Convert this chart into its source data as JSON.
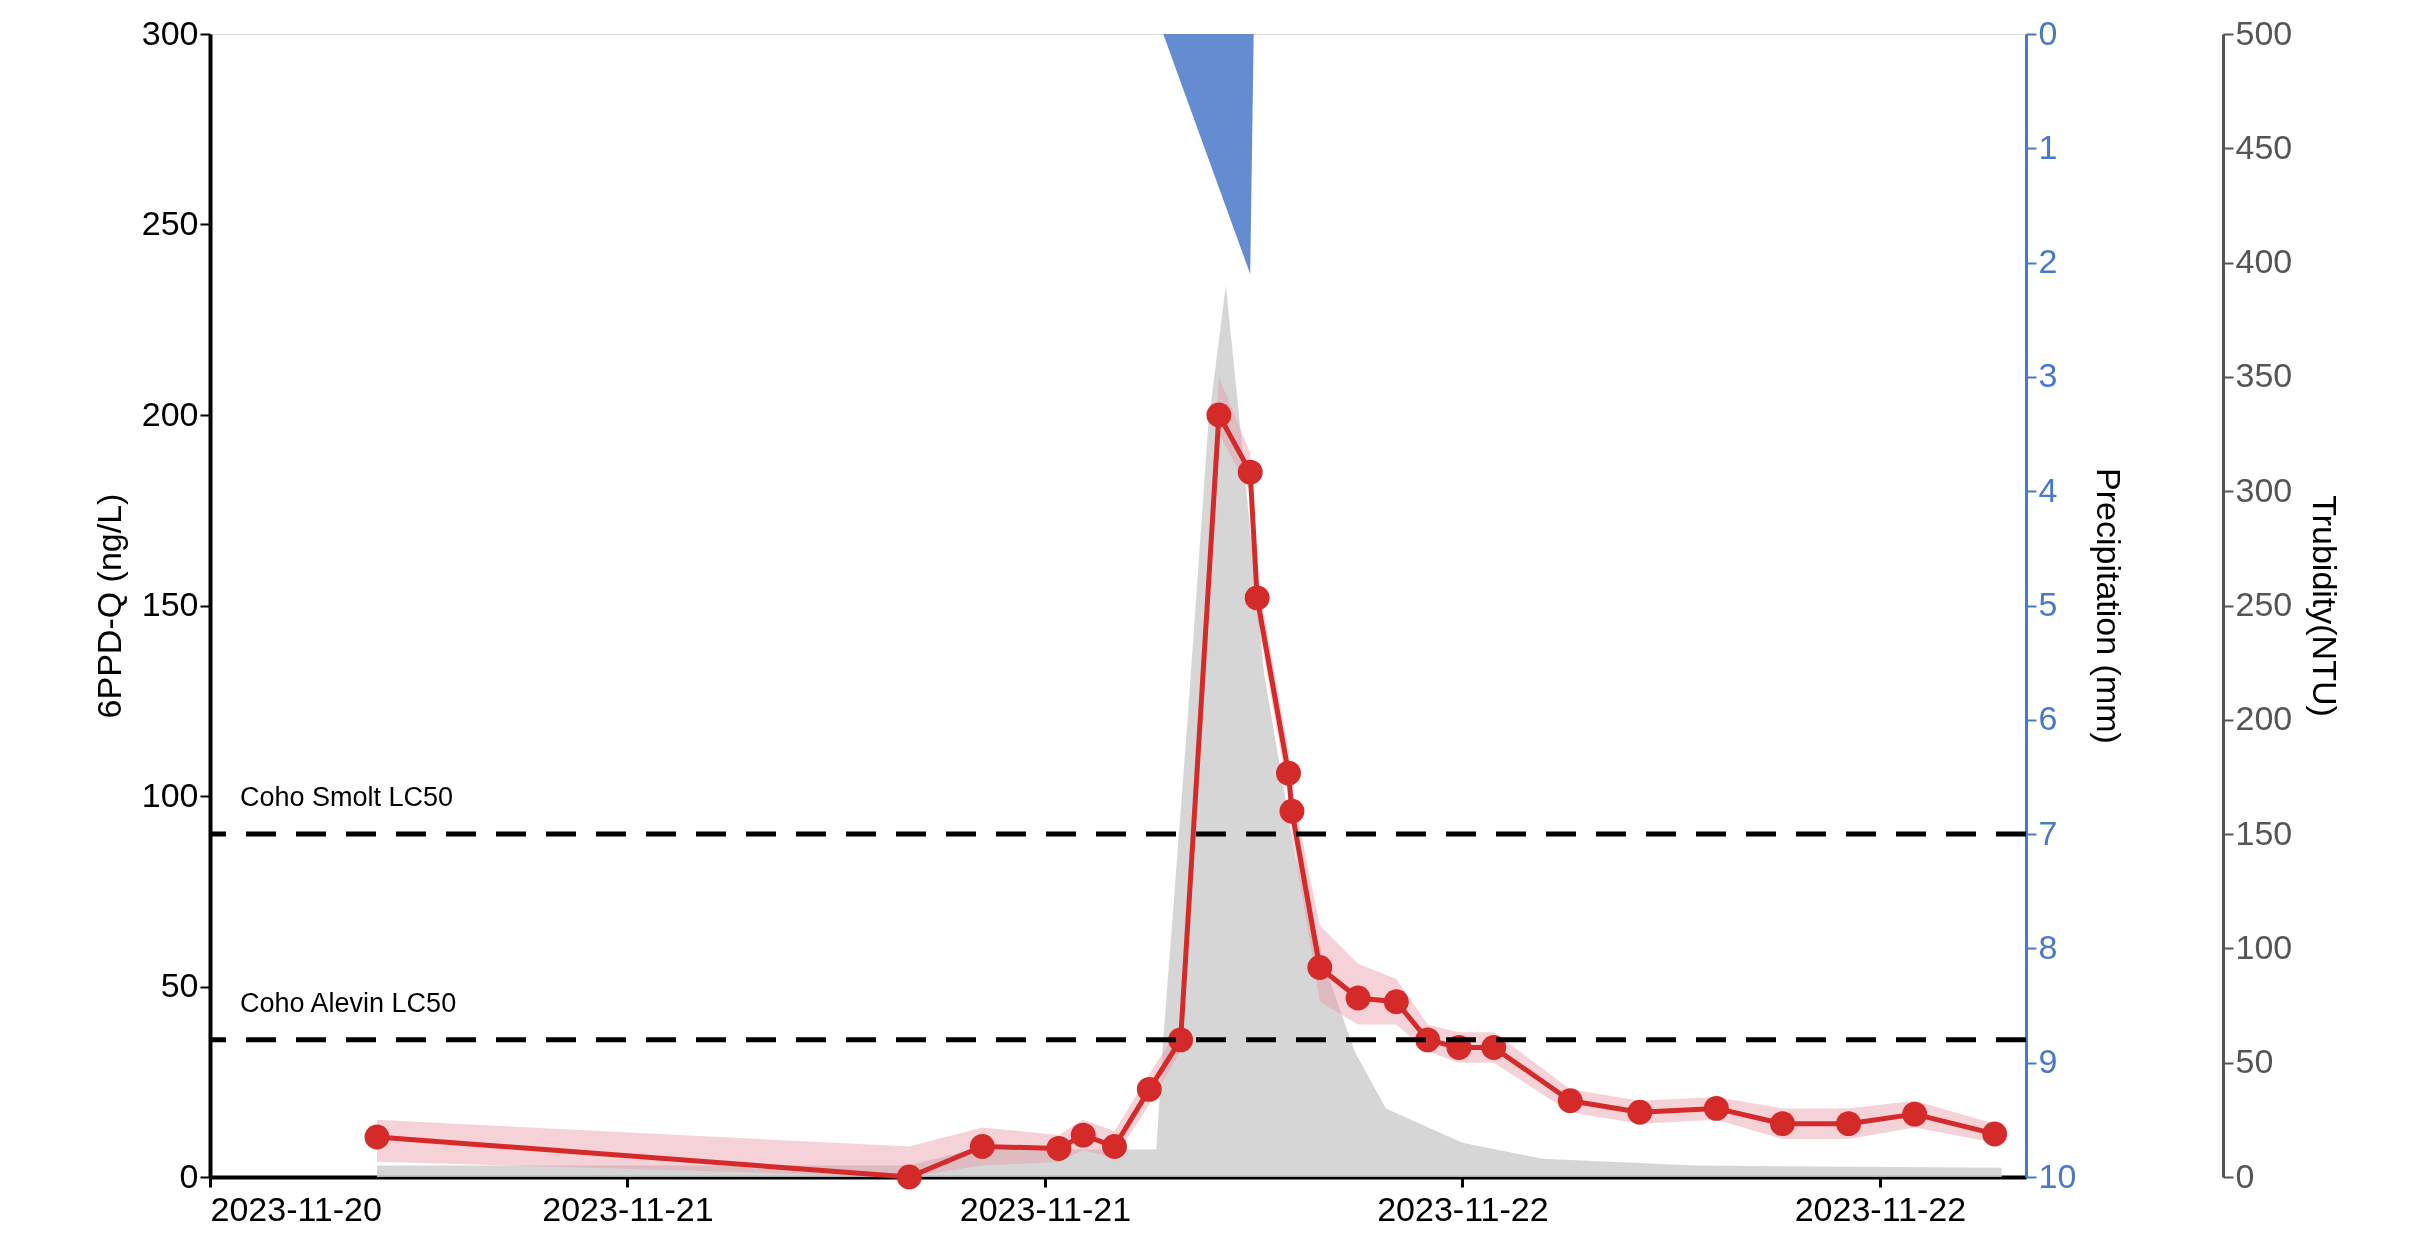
{
  "chart_data": {
    "type": "line",
    "ylabel": "6PPD-Q (ng/L)",
    "y2label": "Precipitation (mm)",
    "y3label": "Trubidity(NTU)",
    "xlim": [
      "2023-11-20T12:00",
      "2023-11-22T16:12"
    ],
    "xticks": [
      {
        "value": "2023-11-20T12:00",
        "label": "2023-11-20"
      },
      {
        "value": "2023-11-21T00:00",
        "label": "2023-11-21"
      },
      {
        "value": "2023-11-21T12:00",
        "label": "2023-11-21"
      },
      {
        "value": "2023-11-22T00:00",
        "label": "2023-11-22"
      },
      {
        "value": "2023-11-22T12:00",
        "label": "2023-11-22"
      }
    ],
    "ylim": [
      0,
      300
    ],
    "yticks": [
      0,
      50,
      100,
      150,
      200,
      250,
      300
    ],
    "y2lim": [
      10,
      0
    ],
    "y2ticks": [
      0,
      1,
      2,
      3,
      4,
      5,
      6,
      7,
      8,
      9,
      10
    ],
    "y3lim": [
      0,
      500
    ],
    "y3ticks": [
      0,
      50,
      100,
      150,
      200,
      250,
      300,
      350,
      400,
      450,
      500
    ],
    "grid": false,
    "line_style": "solid",
    "series": [
      {
        "type": "area",
        "axis": "y3",
        "color": "#cfcfcf",
        "x": [
          "2023-11-20T16:48",
          "2023-11-21T08:06",
          "2023-11-21T09:54",
          "2023-11-21T15:12",
          "2023-11-21T15:24",
          "2023-11-21T16:06",
          "2023-11-21T16:42",
          "2023-11-21T17:12",
          "2023-11-21T17:36",
          "2023-11-21T18:18",
          "2023-11-21T19:12",
          "2023-11-21T20:06",
          "2023-11-21T20:54",
          "2023-11-21T21:48",
          "2023-11-22T00:00",
          "2023-11-22T02:18",
          "2023-11-22T06:42",
          "2023-11-22T15:30"
        ],
        "values": [
          5,
          5,
          12,
          12,
          60,
          200,
          330,
          390,
          330,
          220,
          140,
          90,
          55,
          30,
          15,
          8,
          5,
          4
        ]
      },
      {
        "type": "area",
        "axis": "y2",
        "color": "#4a78c8",
        "x": [
          "2023-11-21T15:24",
          "2023-11-21T17:54",
          "2023-11-21T18:00"
        ],
        "values": [
          0,
          2.1,
          0
        ]
      },
      {
        "color": "#d42a2a",
        "marker": "circle",
        "x": [
          "2023-11-20T16:48",
          "2023-11-21T08:06",
          "2023-11-21T10:12",
          "2023-11-21T12:24",
          "2023-11-21T13:06",
          "2023-11-21T14:00",
          "2023-11-21T15:00",
          "2023-11-21T15:54",
          "2023-11-21T17:00",
          "2023-11-21T17:54",
          "2023-11-21T18:06",
          "2023-11-21T19:00",
          "2023-11-21T19:06",
          "2023-11-21T19:54",
          "2023-11-21T21:00",
          "2023-11-21T22:06",
          "2023-11-21T23:00",
          "2023-11-21T23:54",
          "2023-11-22T00:54",
          "2023-11-22T03:06",
          "2023-11-22T05:06",
          "2023-11-22T07:18",
          "2023-11-22T09:12",
          "2023-11-22T11:06",
          "2023-11-22T13:00",
          "2023-11-22T15:18"
        ],
        "values": [
          10.5,
          0,
          8,
          7.5,
          11,
          8,
          23,
          36,
          200,
          185,
          152,
          106,
          96,
          55,
          47,
          46,
          36,
          34,
          34,
          20,
          17,
          18,
          14,
          14,
          16.5,
          11.3
        ],
        "lower": [
          4,
          0,
          3,
          4,
          7,
          5,
          19,
          33,
          195,
          180,
          147,
          100,
          90,
          46,
          40,
          40,
          33,
          30,
          30,
          17,
          14,
          15,
          10,
          10,
          13,
          9
        ],
        "upper": [
          15,
          8,
          13,
          11,
          15,
          12,
          27,
          40,
          210,
          190,
          158,
          112,
          102,
          66,
          56,
          52,
          40,
          38,
          38,
          23,
          20,
          21,
          18,
          18,
          20,
          14
        ]
      }
    ],
    "ref_lines": [
      {
        "axis": "y",
        "value": 90,
        "label": "Coho Smolt LC50",
        "color": "#000000",
        "line_style": "dashed"
      },
      {
        "axis": "y",
        "value": 36,
        "label": "Coho Alevin LC50",
        "color": "#000000",
        "line_style": "dashed"
      }
    ]
  }
}
